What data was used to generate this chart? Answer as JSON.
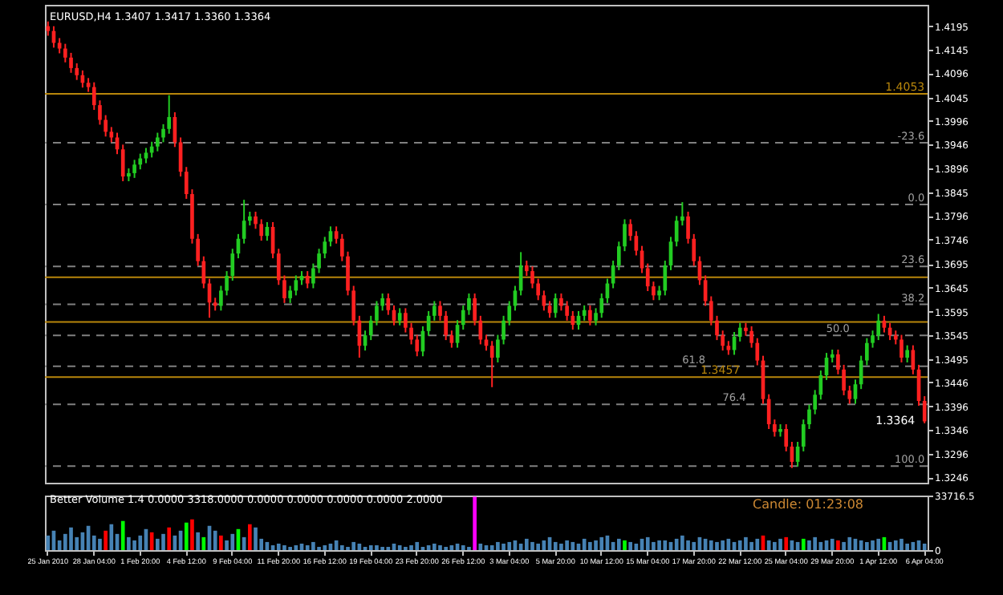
{
  "chart_data": [
    {
      "type": "candlestick",
      "title": "EURUSD,H4  1.3407 1.3417 1.3360 1.3364",
      "categories": [
        "25 Jan 2010",
        null,
        null,
        null,
        null,
        null,
        null,
        null,
        "28 Jan 04:00",
        null,
        null,
        null,
        null,
        null,
        null,
        null,
        "1 Feb 20:00",
        null,
        null,
        null,
        null,
        null,
        null,
        null,
        "4 Feb 12:00",
        null,
        null,
        null,
        null,
        null,
        null,
        null,
        "9 Feb 04:00",
        null,
        null,
        null,
        null,
        null,
        null,
        null,
        "11 Feb 20:00",
        null,
        null,
        null,
        null,
        null,
        null,
        null,
        "16 Feb 12:00",
        null,
        null,
        null,
        null,
        null,
        null,
        null,
        "19 Feb 04:00",
        null,
        null,
        null,
        null,
        null,
        null,
        null,
        "23 Feb 20:00",
        null,
        null,
        null,
        null,
        null,
        null,
        null,
        "26 Feb 12:00",
        null,
        null,
        null,
        null,
        null,
        null,
        null,
        "3 Mar 04:00",
        null,
        null,
        null,
        null,
        null,
        null,
        null,
        "5 Mar 20:00",
        null,
        null,
        null,
        null,
        null,
        null,
        null,
        "10 Mar 12:00",
        null,
        null,
        null,
        null,
        null,
        null,
        null,
        "15 Mar 04:00",
        null,
        null,
        null,
        null,
        null,
        null,
        null,
        "17 Mar 20:00",
        null,
        null,
        null,
        null,
        null,
        null,
        null,
        "22 Mar 12:00",
        null,
        null,
        null,
        null,
        null,
        null,
        null,
        "25 Mar 04:00",
        null,
        null,
        null,
        null,
        null,
        null,
        null,
        "29 Mar 20:00",
        null,
        null,
        null,
        null,
        null,
        null,
        null,
        "1 Apr 12:00",
        null,
        null,
        null,
        null,
        null,
        null,
        null,
        "6 Apr 04:00"
      ],
      "ohlc": [
        [
          1.4195,
          1.4205,
          1.4175,
          1.4185
        ],
        [
          1.4185,
          1.4195,
          1.415,
          1.416
        ],
        [
          1.416,
          1.417,
          1.4138,
          1.4148
        ],
        [
          1.4148,
          1.4158,
          1.4119,
          1.4129
        ],
        [
          1.4129,
          1.4139,
          1.4097,
          1.4107
        ],
        [
          1.4107,
          1.4117,
          1.4082,
          1.4092
        ],
        [
          1.4092,
          1.4102,
          1.4066,
          1.4076
        ],
        [
          1.4076,
          1.4086,
          1.4057,
          1.4067
        ],
        [
          1.4067,
          1.4077,
          1.4019,
          1.4029
        ],
        [
          1.4029,
          1.4039,
          1.3988,
          1.3998
        ],
        [
          1.3998,
          1.4008,
          1.3963,
          1.3973
        ],
        [
          1.3973,
          1.3983,
          1.3951,
          1.3961
        ],
        [
          1.3961,
          1.3971,
          1.3926,
          1.3936
        ],
        [
          1.3936,
          1.3946,
          1.3869,
          1.3879
        ],
        [
          1.3879,
          1.3896,
          1.3869,
          1.3886
        ],
        [
          1.3886,
          1.3914,
          1.3876,
          1.3904
        ],
        [
          1.3904,
          1.3927,
          1.3894,
          1.3917
        ],
        [
          1.3917,
          1.3939,
          1.3907,
          1.3929
        ],
        [
          1.3929,
          1.3952,
          1.3919,
          1.3942
        ],
        [
          1.3942,
          1.3971,
          1.3932,
          1.3961
        ],
        [
          1.3961,
          1.3989,
          1.3951,
          1.3979
        ],
        [
          1.3979,
          1.405,
          1.3969,
          1.4004
        ],
        [
          1.4004,
          1.4014,
          1.3941,
          1.3951
        ],
        [
          1.3951,
          1.3961,
          1.3879,
          1.3889
        ],
        [
          1.3889,
          1.3899,
          1.3832,
          1.3842
        ],
        [
          1.3842,
          1.3852,
          1.3738,
          1.3748
        ],
        [
          1.3748,
          1.3758,
          1.3691,
          1.3701
        ],
        [
          1.3701,
          1.3711,
          1.3644,
          1.3654
        ],
        [
          1.3654,
          1.3664,
          1.3582,
          1.3614
        ],
        [
          1.3614,
          1.3624,
          1.3597,
          1.3607
        ],
        [
          1.3607,
          1.3649,
          1.3597,
          1.3639
        ],
        [
          1.3639,
          1.368,
          1.3629,
          1.367
        ],
        [
          1.367,
          1.3727,
          1.366,
          1.3717
        ],
        [
          1.3717,
          1.3758,
          1.3707,
          1.3748
        ],
        [
          1.3748,
          1.383,
          1.3738,
          1.3786
        ],
        [
          1.3786,
          1.3805,
          1.3776,
          1.3795
        ],
        [
          1.3795,
          1.3805,
          1.3769,
          1.3779
        ],
        [
          1.3779,
          1.3789,
          1.3744,
          1.3754
        ],
        [
          1.3754,
          1.3783,
          1.3744,
          1.3773
        ],
        [
          1.3773,
          1.3783,
          1.3707,
          1.3717
        ],
        [
          1.3717,
          1.3727,
          1.3651,
          1.3661
        ],
        [
          1.3661,
          1.3671,
          1.3613,
          1.3623
        ],
        [
          1.3623,
          1.3649,
          1.3613,
          1.3639
        ],
        [
          1.3639,
          1.3671,
          1.3629,
          1.3661
        ],
        [
          1.3661,
          1.368,
          1.3651,
          1.367
        ],
        [
          1.367,
          1.368,
          1.3644,
          1.3654
        ],
        [
          1.3654,
          1.3696,
          1.3644,
          1.3686
        ],
        [
          1.3686,
          1.3727,
          1.3676,
          1.3717
        ],
        [
          1.3717,
          1.3752,
          1.3707,
          1.3742
        ],
        [
          1.3742,
          1.3774,
          1.3732,
          1.3764
        ],
        [
          1.3764,
          1.3774,
          1.3738,
          1.3748
        ],
        [
          1.3748,
          1.3758,
          1.3701,
          1.3711
        ],
        [
          1.3711,
          1.3721,
          1.3629,
          1.3639
        ],
        [
          1.3639,
          1.3649,
          1.3566,
          1.3576
        ],
        [
          1.3576,
          1.3586,
          1.3498,
          1.3523
        ],
        [
          1.3523,
          1.3555,
          1.3513,
          1.3545
        ],
        [
          1.3545,
          1.3586,
          1.3535,
          1.3576
        ],
        [
          1.3576,
          1.3617,
          1.3566,
          1.3607
        ],
        [
          1.3607,
          1.3633,
          1.3597,
          1.3623
        ],
        [
          1.3623,
          1.3633,
          1.3588,
          1.3598
        ],
        [
          1.3598,
          1.3608,
          1.3566,
          1.3576
        ],
        [
          1.3576,
          1.3602,
          1.3566,
          1.3592
        ],
        [
          1.3592,
          1.3602,
          1.3551,
          1.3561
        ],
        [
          1.3561,
          1.3571,
          1.3526,
          1.3536
        ],
        [
          1.3536,
          1.3546,
          1.3501,
          1.3511
        ],
        [
          1.3511,
          1.3564,
          1.3501,
          1.3554
        ],
        [
          1.3554,
          1.3596,
          1.3544,
          1.3586
        ],
        [
          1.3586,
          1.3617,
          1.3576,
          1.3607
        ],
        [
          1.3607,
          1.3617,
          1.3576,
          1.3586
        ],
        [
          1.3586,
          1.3596,
          1.3535,
          1.3545
        ],
        [
          1.3545,
          1.3555,
          1.3519,
          1.3529
        ],
        [
          1.3529,
          1.3577,
          1.3519,
          1.3567
        ],
        [
          1.3567,
          1.3608,
          1.3557,
          1.3598
        ],
        [
          1.3598,
          1.3633,
          1.3588,
          1.3623
        ],
        [
          1.3623,
          1.3633,
          1.3566,
          1.3576
        ],
        [
          1.3576,
          1.3586,
          1.3526,
          1.3536
        ],
        [
          1.3536,
          1.3546,
          1.3513,
          1.3523
        ],
        [
          1.3523,
          1.3533,
          1.3436,
          1.3498
        ],
        [
          1.3498,
          1.3546,
          1.3488,
          1.3536
        ],
        [
          1.3536,
          1.3586,
          1.3526,
          1.3576
        ],
        [
          1.3576,
          1.3617,
          1.3566,
          1.3607
        ],
        [
          1.3607,
          1.3649,
          1.3597,
          1.3639
        ],
        [
          1.3639,
          1.372,
          1.3629,
          1.3692
        ],
        [
          1.3692,
          1.3702,
          1.367,
          1.368
        ],
        [
          1.368,
          1.369,
          1.3644,
          1.3654
        ],
        [
          1.3654,
          1.3664,
          1.3619,
          1.3629
        ],
        [
          1.3629,
          1.3639,
          1.3597,
          1.3607
        ],
        [
          1.3607,
          1.3617,
          1.3582,
          1.3592
        ],
        [
          1.3592,
          1.3633,
          1.3582,
          1.3623
        ],
        [
          1.3623,
          1.3633,
          1.3597,
          1.3607
        ],
        [
          1.3607,
          1.3617,
          1.3576,
          1.3586
        ],
        [
          1.3586,
          1.3596,
          1.3557,
          1.3567
        ],
        [
          1.3567,
          1.3596,
          1.3557,
          1.3586
        ],
        [
          1.3586,
          1.3608,
          1.3576,
          1.3598
        ],
        [
          1.3598,
          1.3608,
          1.3566,
          1.3576
        ],
        [
          1.3576,
          1.3602,
          1.3566,
          1.3592
        ],
        [
          1.3592,
          1.3633,
          1.3582,
          1.3623
        ],
        [
          1.3623,
          1.3664,
          1.3613,
          1.3654
        ],
        [
          1.3654,
          1.3702,
          1.3644,
          1.3692
        ],
        [
          1.3692,
          1.3742,
          1.3682,
          1.3732
        ],
        [
          1.3732,
          1.3789,
          1.3722,
          1.3779
        ],
        [
          1.3779,
          1.3789,
          1.3744,
          1.3754
        ],
        [
          1.3754,
          1.3764,
          1.3713,
          1.3723
        ],
        [
          1.3723,
          1.3733,
          1.3676,
          1.3686
        ],
        [
          1.3686,
          1.3696,
          1.3638,
          1.3648
        ],
        [
          1.3648,
          1.3658,
          1.3619,
          1.3629
        ],
        [
          1.3629,
          1.3649,
          1.3619,
          1.3639
        ],
        [
          1.3639,
          1.3702,
          1.3629,
          1.3692
        ],
        [
          1.3692,
          1.3752,
          1.3682,
          1.3742
        ],
        [
          1.3742,
          1.3796,
          1.3732,
          1.3786
        ],
        [
          1.3786,
          1.3825,
          1.3776,
          1.3795
        ],
        [
          1.3795,
          1.3805,
          1.3738,
          1.3748
        ],
        [
          1.3748,
          1.3758,
          1.3691,
          1.3701
        ],
        [
          1.3701,
          1.3711,
          1.3651,
          1.3661
        ],
        [
          1.3661,
          1.3671,
          1.3607,
          1.3617
        ],
        [
          1.3617,
          1.3627,
          1.3566,
          1.3576
        ],
        [
          1.3576,
          1.3586,
          1.3535,
          1.3545
        ],
        [
          1.3545,
          1.3555,
          1.3513,
          1.3523
        ],
        [
          1.3523,
          1.3533,
          1.3504,
          1.3514
        ],
        [
          1.3514,
          1.3552,
          1.3504,
          1.3542
        ],
        [
          1.3542,
          1.3571,
          1.3532,
          1.3561
        ],
        [
          1.3561,
          1.3571,
          1.3544,
          1.3554
        ],
        [
          1.3554,
          1.3564,
          1.3519,
          1.3529
        ],
        [
          1.3529,
          1.3539,
          1.3482,
          1.3492
        ],
        [
          1.3492,
          1.3502,
          1.3401,
          1.3411
        ],
        [
          1.3411,
          1.3421,
          1.3348,
          1.3358
        ],
        [
          1.3358,
          1.3368,
          1.3332,
          1.3342
        ],
        [
          1.3342,
          1.3358,
          1.3332,
          1.3348
        ],
        [
          1.3348,
          1.3358,
          1.3301,
          1.3311
        ],
        [
          1.3311,
          1.3321,
          1.3266,
          1.3279
        ],
        [
          1.3279,
          1.3321,
          1.3269,
          1.3311
        ],
        [
          1.3311,
          1.3368,
          1.3301,
          1.3358
        ],
        [
          1.3358,
          1.3399,
          1.3348,
          1.3389
        ],
        [
          1.3389,
          1.343,
          1.3379,
          1.342
        ],
        [
          1.342,
          1.3471,
          1.341,
          1.3461
        ],
        [
          1.3461,
          1.3508,
          1.3451,
          1.3498
        ],
        [
          1.3498,
          1.3515,
          1.3488,
          1.3505
        ],
        [
          1.3505,
          1.3515,
          1.3463,
          1.3473
        ],
        [
          1.3473,
          1.3483,
          1.3419,
          1.3429
        ],
        [
          1.3429,
          1.3439,
          1.3401,
          1.3411
        ],
        [
          1.3411,
          1.3452,
          1.3401,
          1.3442
        ],
        [
          1.3442,
          1.3502,
          1.3432,
          1.3492
        ],
        [
          1.3492,
          1.3539,
          1.3482,
          1.3529
        ],
        [
          1.3529,
          1.3555,
          1.3519,
          1.3545
        ],
        [
          1.3545,
          1.359,
          1.3535,
          1.3576
        ],
        [
          1.3576,
          1.3586,
          1.3551,
          1.3561
        ],
        [
          1.3561,
          1.3571,
          1.3535,
          1.3545
        ],
        [
          1.3545,
          1.3555,
          1.3526,
          1.3536
        ],
        [
          1.3536,
          1.3546,
          1.3488,
          1.3498
        ],
        [
          1.3498,
          1.3524,
          1.3488,
          1.3514
        ],
        [
          1.3514,
          1.3524,
          1.3463,
          1.3473
        ],
        [
          1.3473,
          1.3483,
          1.3397,
          1.3407
        ],
        [
          1.3407,
          1.3417,
          1.336,
          1.3364
        ]
      ],
      "colors": [
        "#ff2020",
        "#ff2020",
        "#ff2020",
        "#ff2020",
        "#ff2020",
        "#ff2020",
        "#ff2020",
        "#ff2020",
        "#ff2020",
        "#ff2020",
        "#ff2020",
        "#ff2020",
        "#ff2020",
        "#ff2020",
        "#22cc22",
        "#22cc22",
        "#22cc22",
        "#22cc22",
        "#22cc22",
        "#22cc22",
        "#22cc22",
        "#22cc22",
        "#ff2020",
        "#ff2020",
        "#ff2020",
        "#ff2020",
        "#ff2020",
        "#ff2020",
        "#ff2020",
        "#ff2020",
        "#22cc22",
        "#22cc22",
        "#22cc22",
        "#22cc22",
        "#22cc22",
        "#22cc22",
        "#ff2020",
        "#ff2020",
        "#22cc22",
        "#ff2020",
        "#ff2020",
        "#ff2020",
        "#22cc22",
        "#22cc22",
        "#22cc22",
        "#ff2020",
        "#22cc22",
        "#22cc22",
        "#22cc22",
        "#22cc22",
        "#ff2020",
        "#ff2020",
        "#ff2020",
        "#ff2020",
        "#ff2020",
        "#22cc22",
        "#22cc22",
        "#22cc22",
        "#22cc22",
        "#ff2020",
        "#ff2020",
        "#22cc22",
        "#ff2020",
        "#ff2020",
        "#ff2020",
        "#22cc22",
        "#22cc22",
        "#22cc22",
        "#ff2020",
        "#ff2020",
        "#ff2020",
        "#22cc22",
        "#22cc22",
        "#22cc22",
        "#ff2020",
        "#ff2020",
        "#ff2020",
        "#ff2020",
        "#22cc22",
        "#22cc22",
        "#22cc22",
        "#22cc22",
        "#22cc22",
        "#ff2020",
        "#ff2020",
        "#ff2020",
        "#ff2020",
        "#ff2020",
        "#22cc22",
        "#ff2020",
        "#ff2020",
        "#ff2020",
        "#22cc22",
        "#22cc22",
        "#ff2020",
        "#22cc22",
        "#22cc22",
        "#22cc22",
        "#22cc22",
        "#22cc22",
        "#22cc22",
        "#ff2020",
        "#ff2020",
        "#ff2020",
        "#ff2020",
        "#ff2020",
        "#22cc22",
        "#22cc22",
        "#22cc22",
        "#22cc22",
        "#22cc22",
        "#ff2020",
        "#ff2020",
        "#ff2020",
        "#ff2020",
        "#ff2020",
        "#ff2020",
        "#ff2020",
        "#ff2020",
        "#22cc22",
        "#22cc22",
        "#ff2020",
        "#ff2020",
        "#ff2020",
        "#ff2020",
        "#ff2020",
        "#ff2020",
        "#22cc22",
        "#ff2020",
        "#ff2020",
        "#22cc22",
        "#22cc22",
        "#22cc22",
        "#22cc22",
        "#22cc22",
        "#22cc22",
        "#22cc22",
        "#ff2020",
        "#ff2020",
        "#ff2020",
        "#22cc22",
        "#22cc22",
        "#22cc22",
        "#22cc22",
        "#22cc22",
        "#ff2020",
        "#ff2020",
        "#ff2020",
        "#ff2020",
        "#22cc22",
        "#ff2020",
        "#ff2020",
        "#ff2020"
      ],
      "ylim": [
        1.3235,
        1.424
      ],
      "yticks": [
        1.3246,
        1.3296,
        1.3346,
        1.3396,
        1.3446,
        1.3495,
        1.3545,
        1.3595,
        1.3645,
        1.3695,
        1.3746,
        1.3796,
        1.3845,
        1.3896,
        1.3946,
        1.3996,
        1.4045,
        1.4096,
        1.4145,
        1.4195
      ],
      "tick_labels": "y",
      "ref_lines": [
        {
          "axis": "y",
          "value": 1.4053,
          "label": "1.4053",
          "color": "#b8860b",
          "line_style": "solid"
        },
        {
          "axis": "y",
          "value": 1.3667,
          "label": null,
          "color": "#b8860b",
          "line_style": "solid"
        },
        {
          "axis": "y",
          "value": 1.3573,
          "label": null,
          "color": "#b8860b",
          "line_style": "solid"
        },
        {
          "axis": "y",
          "value": 1.3457,
          "label": "1.3457",
          "color": "#b8860b",
          "line_style": "solid"
        },
        {
          "axis": "y",
          "value": 1.395,
          "color": "#808080",
          "line_style": "dashed"
        },
        {
          "axis": "y",
          "value": 1.382,
          "color": "#808080",
          "line_style": "dashed"
        },
        {
          "axis": "y",
          "value": 1.369,
          "color": "#808080",
          "line_style": "dashed"
        },
        {
          "axis": "y",
          "value": 1.361,
          "color": "#808080",
          "line_style": "dashed"
        },
        {
          "axis": "y",
          "value": 1.3545,
          "color": "#808080",
          "line_style": "dashed"
        },
        {
          "axis": "y",
          "value": 1.348,
          "color": "#808080",
          "line_style": "dashed"
        },
        {
          "axis": "y",
          "value": 1.34,
          "color": "#808080",
          "line_style": "dashed"
        },
        {
          "axis": "y",
          "value": 1.327,
          "color": "#808080",
          "line_style": "dashed"
        }
      ],
      "annotations": [
        {
          "text": "1.3364",
          "x": "6 Apr 04:00",
          "y": 1.3364
        },
        {
          "text": "-23.6",
          "y": 1.395
        },
        {
          "text": "0.0",
          "y": 1.382
        },
        {
          "text": "23.6",
          "y": 1.369
        },
        {
          "text": "38.2",
          "y": 1.361
        },
        {
          "text": "50.0",
          "y": 1.3545
        },
        {
          "text": "61.8",
          "y": 1.348
        },
        {
          "text": "76.4",
          "y": 1.34
        },
        {
          "text": "100.0",
          "y": 1.327
        }
      ]
    },
    {
      "type": "bar",
      "title": "Better Volume 1.4 0.0000 3318.0000 0.0000 0.0000 0.0000 0.0000 2.0000",
      "categories": [
        "25 Jan 2010",
        null,
        null,
        null,
        null,
        null,
        null,
        null,
        "28 Jan 04:00",
        null,
        null,
        null,
        null,
        null,
        null,
        null,
        "1 Feb 20:00",
        null,
        null,
        null,
        null,
        null,
        null,
        null,
        "4 Feb 12:00",
        null,
        null,
        null,
        null,
        null,
        null,
        null,
        "9 Feb 04:00",
        null,
        null,
        null,
        null,
        null,
        null,
        null,
        "11 Feb 20:00",
        null,
        null,
        null,
        null,
        null,
        null,
        null,
        "16 Feb 12:00",
        null,
        null,
        null,
        null,
        null,
        null,
        null,
        "19 Feb 04:00",
        null,
        null,
        null,
        null,
        null,
        null,
        null,
        "23 Feb 20:00",
        null,
        null,
        null,
        null,
        null,
        null,
        null,
        "26 Feb 12:00",
        null,
        null,
        null,
        null,
        null,
        null,
        null,
        "3 Mar 04:00",
        null,
        null,
        null,
        null,
        null,
        null,
        null,
        "5 Mar 20:00",
        null,
        null,
        null,
        null,
        null,
        null,
        null,
        "10 Mar 12:00",
        null,
        null,
        null,
        null,
        null,
        null,
        null,
        "15 Mar 04:00",
        null,
        null,
        null,
        null,
        null,
        null,
        null,
        "17 Mar 20:00",
        null,
        null,
        null,
        null,
        null,
        null,
        null,
        "22 Mar 12:00",
        null,
        null,
        null,
        null,
        null,
        null,
        null,
        "25 Mar 04:00",
        null,
        null,
        null,
        null,
        null,
        null,
        null,
        "29 Mar 20:00",
        null,
        null,
        null,
        null,
        null,
        null,
        null,
        "1 Apr 12:00",
        null,
        null,
        null,
        null,
        null,
        null,
        null,
        "6 Apr 04:00"
      ],
      "values": [
        9000,
        12000,
        6000,
        10000,
        14000,
        8000,
        11000,
        15000,
        9000,
        7000,
        12000,
        16000,
        10000,
        18000,
        8000,
        6000,
        9000,
        13000,
        11000,
        7000,
        10000,
        14000,
        9000,
        12000,
        17000,
        19000,
        11000,
        8000,
        15000,
        12000,
        9000,
        6000,
        10000,
        13000,
        8000,
        16000,
        14000,
        7000,
        5000,
        3000,
        4000,
        3000,
        2000,
        3000,
        4000,
        3000,
        5000,
        2000,
        3000,
        4000,
        6000,
        3000,
        2000,
        5000,
        4000,
        2000,
        3000,
        3000,
        2000,
        2000,
        4000,
        3000,
        2000,
        3000,
        5000,
        2000,
        3000,
        4000,
        3000,
        2000,
        3000,
        4000,
        3000,
        2000,
        33000,
        4000,
        3000,
        3000,
        5000,
        4000,
        5000,
        6000,
        4000,
        7000,
        5000,
        4000,
        6000,
        8000,
        5000,
        4000,
        6000,
        5000,
        4000,
        7000,
        5000,
        6000,
        8000,
        9000,
        5000,
        7000,
        6000,
        5000,
        4000,
        7000,
        8000,
        5000,
        6000,
        6000,
        5000,
        7000,
        9000,
        6000,
        5000,
        8000,
        7000,
        6000,
        5000,
        6000,
        7000,
        5000,
        6000,
        8000,
        5000,
        7000,
        9000,
        6000,
        5000,
        7000,
        8000,
        6000,
        5000,
        7000,
        6000,
        8000,
        5000,
        6000,
        7000,
        6000,
        5000,
        8000,
        7000,
        6000,
        5000,
        6000,
        7000,
        8000,
        5000,
        6000,
        7000,
        4000,
        5000,
        6000,
        4000
      ],
      "colors": [
        "#4682b4",
        "#4682b4",
        "#4682b4",
        "#4682b4",
        "#4682b4",
        "#4682b4",
        "#4682b4",
        "#4682b4",
        "#4682b4",
        "#4682b4",
        "#ff0000",
        "#4682b4",
        "#4682b4",
        "#00ff00",
        "#4682b4",
        "#4682b4",
        "#4682b4",
        "#4682b4",
        "#ff0000",
        "#4682b4",
        "#4682b4",
        "#ff0000",
        "#4682b4",
        "#4682b4",
        "#00ff00",
        "#ff0000",
        "#4682b4",
        "#00ff00",
        "#4682b4",
        "#4682b4",
        "#ff0000",
        "#4682b4",
        "#4682b4",
        "#00ff00",
        "#4682b4",
        "#ff0000",
        "#4682b4",
        "#4682b4",
        "#4682b4",
        "#4682b4",
        "#4682b4",
        "#4682b4",
        "#4682b4",
        "#4682b4",
        "#4682b4",
        "#4682b4",
        "#4682b4",
        "#4682b4",
        "#4682b4",
        "#4682b4",
        "#4682b4",
        "#4682b4",
        "#4682b4",
        "#4682b4",
        "#4682b4",
        "#4682b4",
        "#4682b4",
        "#4682b4",
        "#4682b4",
        "#4682b4",
        "#4682b4",
        "#4682b4",
        "#4682b4",
        "#4682b4",
        "#4682b4",
        "#4682b4",
        "#4682b4",
        "#4682b4",
        "#4682b4",
        "#4682b4",
        "#4682b4",
        "#4682b4",
        "#4682b4",
        "#4682b4",
        "#ff00ff",
        "#4682b4",
        "#4682b4",
        "#4682b4",
        "#4682b4",
        "#4682b4",
        "#4682b4",
        "#4682b4",
        "#4682b4",
        "#4682b4",
        "#4682b4",
        "#4682b4",
        "#4682b4",
        "#4682b4",
        "#4682b4",
        "#4682b4",
        "#4682b4",
        "#4682b4",
        "#4682b4",
        "#4682b4",
        "#4682b4",
        "#4682b4",
        "#4682b4",
        "#4682b4",
        "#4682b4",
        "#4682b4",
        "#00ff00",
        "#4682b4",
        "#4682b4",
        "#4682b4",
        "#4682b4",
        "#4682b4",
        "#4682b4",
        "#4682b4",
        "#4682b4",
        "#4682b4",
        "#4682b4",
        "#4682b4",
        "#4682b4",
        "#4682b4",
        "#4682b4",
        "#4682b4",
        "#4682b4",
        "#4682b4",
        "#4682b4",
        "#4682b4",
        "#4682b4",
        "#4682b4",
        "#4682b4",
        "#4682b4",
        "#ff0000",
        "#4682b4",
        "#4682b4",
        "#4682b4",
        "#ff0000",
        "#4682b4",
        "#4682b4",
        "#00ff00",
        "#4682b4",
        "#4682b4",
        "#4682b4",
        "#4682b4",
        "#4682b4",
        "#ff0000",
        "#4682b4",
        "#4682b4",
        "#4682b4",
        "#4682b4",
        "#4682b4",
        "#4682b4",
        "#4682b4",
        "#00ff00",
        "#4682b4",
        "#4682b4",
        "#4682b4",
        "#4682b4",
        "#4682b4",
        "#4682b4",
        "#4682b4"
      ],
      "ylim": [
        0,
        33716.5
      ],
      "yticks": [
        0,
        33716.5
      ],
      "annotations": [
        "Candle: 01:23:08"
      ]
    }
  ]
}
